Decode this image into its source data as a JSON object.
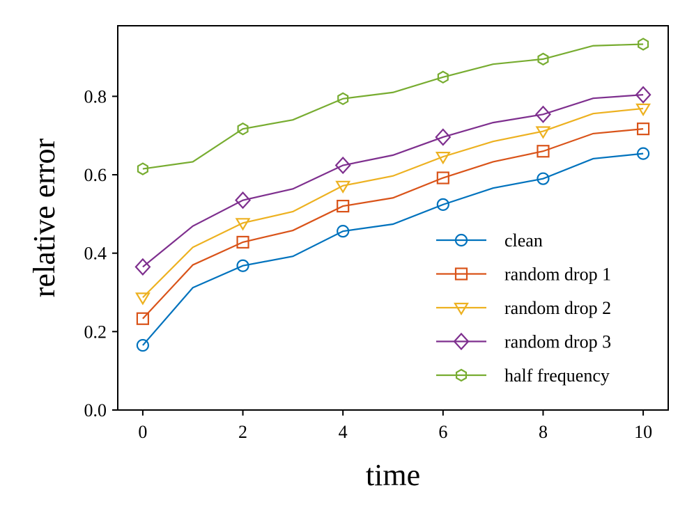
{
  "chart_data": {
    "type": "line",
    "title": "",
    "xlabel": "time",
    "ylabel": "relative error",
    "xlim": [
      -0.5,
      10.5
    ],
    "ylim": [
      0.0,
      0.98
    ],
    "xticks": [
      0,
      2,
      4,
      6,
      8,
      10
    ],
    "xtick_labels": [
      "0",
      "2",
      "4",
      "6",
      "8",
      "10"
    ],
    "yticks": [
      0.0,
      0.2,
      0.4,
      0.6,
      0.8
    ],
    "ytick_labels": [
      "0.0",
      "0.2",
      "0.4",
      "0.6",
      "0.8"
    ],
    "grid": false,
    "legend_position": "lower-right",
    "x": [
      0,
      1,
      2,
      3,
      4,
      5,
      6,
      7,
      8,
      9,
      10
    ],
    "marker_every": 2,
    "series": [
      {
        "name": "clean",
        "color": "#0072BD",
        "marker": "circle",
        "values": [
          0.165,
          0.312,
          0.368,
          0.392,
          0.456,
          0.474,
          0.524,
          0.566,
          0.59,
          0.641,
          0.654
        ]
      },
      {
        "name": "random drop 1",
        "color": "#D95319",
        "marker": "square",
        "values": [
          0.233,
          0.37,
          0.428,
          0.458,
          0.52,
          0.541,
          0.592,
          0.633,
          0.66,
          0.705,
          0.717
        ]
      },
      {
        "name": "random drop 2",
        "color": "#EDB120",
        "marker": "triangle-down",
        "values": [
          0.287,
          0.415,
          0.477,
          0.506,
          0.572,
          0.597,
          0.646,
          0.685,
          0.711,
          0.756,
          0.769
        ]
      },
      {
        "name": "random drop 3",
        "color": "#7E2F8E",
        "marker": "diamond",
        "values": [
          0.365,
          0.469,
          0.535,
          0.564,
          0.624,
          0.65,
          0.696,
          0.733,
          0.754,
          0.795,
          0.804
        ]
      },
      {
        "name": "half frequency",
        "color": "#77AC30",
        "marker": "hexagon",
        "values": [
          0.615,
          0.633,
          0.717,
          0.74,
          0.794,
          0.81,
          0.849,
          0.882,
          0.895,
          0.929,
          0.933
        ]
      }
    ]
  }
}
